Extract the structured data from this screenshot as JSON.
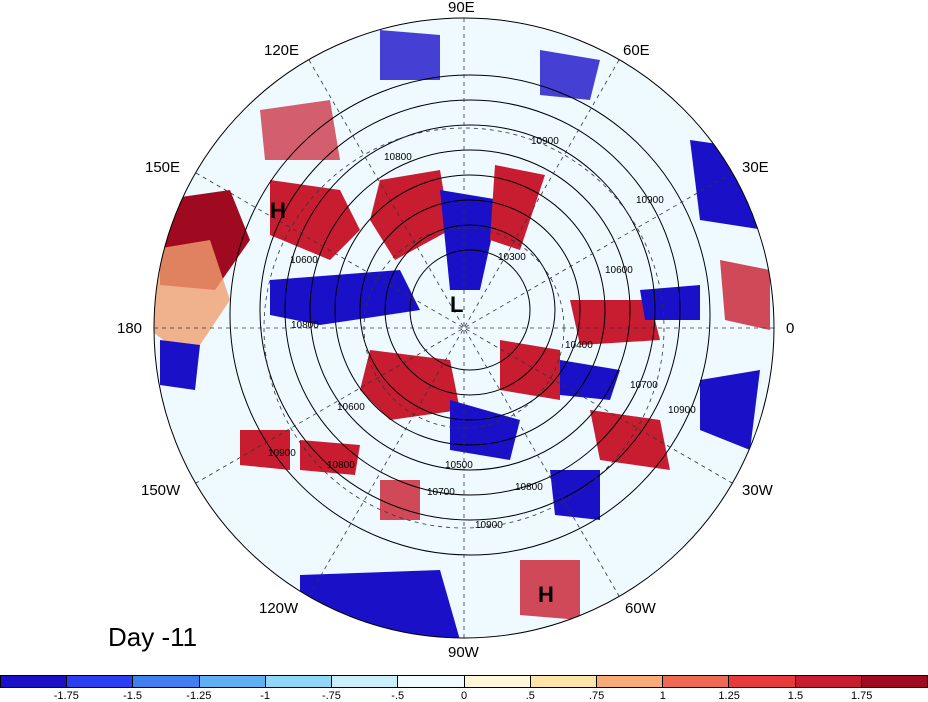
{
  "longitude_labels": [
    {
      "text": "90E"
    },
    {
      "text": "60E"
    },
    {
      "text": "120E"
    },
    {
      "text": "150E"
    },
    {
      "text": "30E"
    },
    {
      "text": "180"
    },
    {
      "text": "0"
    },
    {
      "text": "150W"
    },
    {
      "text": "30W"
    },
    {
      "text": "120W"
    },
    {
      "text": "60W"
    },
    {
      "text": "90W"
    }
  ],
  "pressure_centers": [
    {
      "text": "H"
    },
    {
      "text": "L"
    },
    {
      "text": "H"
    }
  ],
  "contour_labels": [
    "10900",
    "10800",
    "10300",
    "10600",
    "10400",
    "10700",
    "10900",
    "10600",
    "10800",
    "10500",
    "10700",
    "10900",
    "10800",
    "10900",
    "10800",
    "10900",
    "10600"
  ],
  "panel_title": "Day -11",
  "colorbar": {
    "colors": [
      "#1a10c8",
      "#2a3ff0",
      "#3f7fee",
      "#5fb0f2",
      "#8fd6f7",
      "#c8effb",
      "#f0fbff",
      "#fff7d8",
      "#fde4a8",
      "#f7ac78",
      "#ef6a54",
      "#e73a3a",
      "#c81d30",
      "#a00a20"
    ],
    "ticks": [
      "-1.75",
      "-1.5",
      "-1.25",
      "-1",
      "-.75",
      "-.5",
      "0",
      ".5",
      ".75",
      "1",
      "1.25",
      "1.5",
      "1.75"
    ]
  }
}
